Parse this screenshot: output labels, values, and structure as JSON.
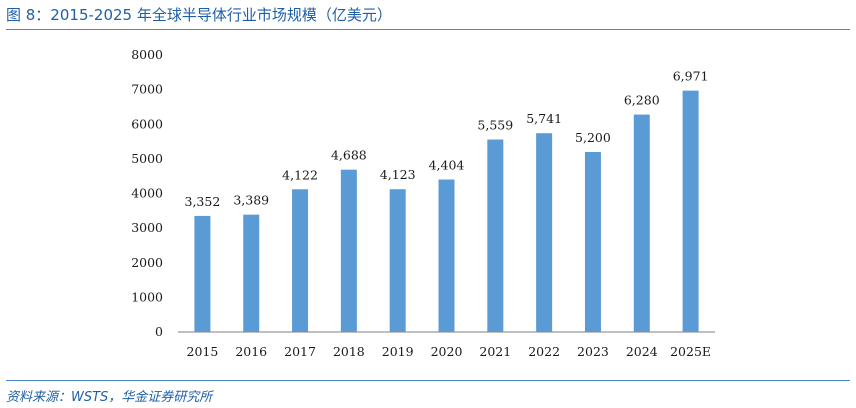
{
  "figure": {
    "title": "图 8：2015-2025 年全球半导体行业市场规模（亿美元）",
    "source": "资料来源：WSTS，华金证券研究所"
  },
  "colors": {
    "bar": "#5b9bd5",
    "axis": "#7f7f7f",
    "title": "#1f5fa8"
  },
  "chart_data": {
    "type": "bar",
    "title": "",
    "xlabel": "",
    "ylabel": "",
    "categories": [
      "2015",
      "2016",
      "2017",
      "2018",
      "2019",
      "2020",
      "2021",
      "2022",
      "2023",
      "2024",
      "2025E"
    ],
    "values": [
      3352,
      3389,
      4122,
      4688,
      4123,
      4404,
      5559,
      5741,
      5200,
      6280,
      6971
    ],
    "data_labels": [
      "3,352",
      "3,389",
      "4,122",
      "4,688",
      "4,123",
      "4,404",
      "5,559",
      "5,741",
      "5,200",
      "6,280",
      "6,971"
    ],
    "ylim": [
      0,
      8000
    ],
    "yticks": [
      "0",
      "1000",
      "2000",
      "3000",
      "4000",
      "5000",
      "6000",
      "7000",
      "8000"
    ],
    "ytick_values": [
      0,
      1000,
      2000,
      3000,
      4000,
      5000,
      6000,
      7000,
      8000
    ],
    "grid": false,
    "legend": "none"
  }
}
